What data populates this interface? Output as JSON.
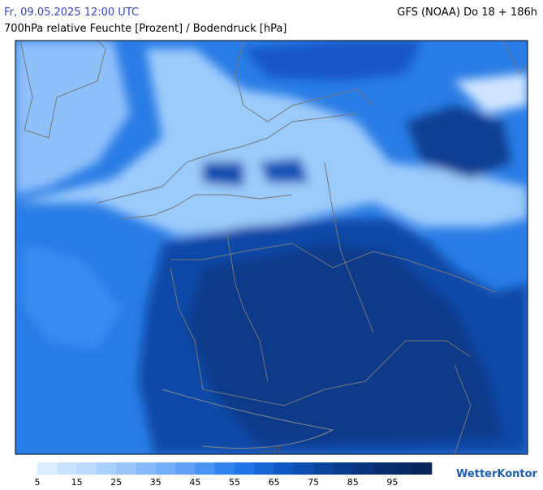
{
  "header": {
    "datetime": "Fr, 09.05.2025 12:00 UTC",
    "model": "GFS (NOAA) Do 18 + 186h",
    "subtitle": "700hPa relative Feuchte [Prozent] / Bodendruck [hPa]"
  },
  "map": {
    "isobar_label": "1015"
  },
  "legend": {
    "ticks": [
      5,
      15,
      25,
      35,
      45,
      55,
      65,
      75,
      85,
      95
    ],
    "colors": [
      "#dcecff",
      "#cce3ff",
      "#bcd9ff",
      "#abcffd",
      "#9ac5fb",
      "#87bafa",
      "#73aef8",
      "#5ea1f6",
      "#4893f3",
      "#3284f0",
      "#1f74e8",
      "#1565d6",
      "#0e58c4",
      "#0b4db0",
      "#0a449f",
      "#0a3c8e",
      "#09357f",
      "#092f72",
      "#082a66",
      "#07255b"
    ]
  },
  "logo": "WetterKontor"
}
